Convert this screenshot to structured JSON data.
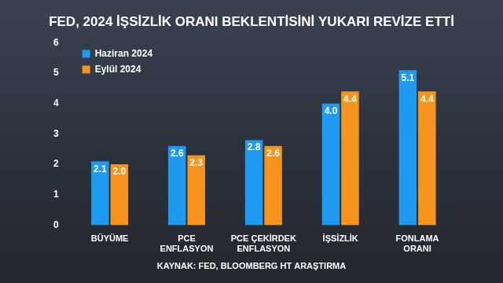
{
  "chart_data": {
    "type": "bar",
    "title": "FED, 2024 İŞSİZLİK ORANI BEKLENTİSİNİ YUKARI REVİZE ETTİ",
    "source": "KAYNAK: FED, BLOOMBERG HT ARAŞTIRMA",
    "categories": [
      "BÜYÜME",
      "PCE\nENFLASYON",
      "PCE ÇEKİRDEK\nENFLASYON",
      "İŞSİZLİK",
      "FONLAMA\nORANI"
    ],
    "series": [
      {
        "name": "Haziran 2024",
        "color": "#1e9bf0",
        "values": [
          2.1,
          2.6,
          2.8,
          4.0,
          5.1
        ],
        "value_labels": [
          "2.1",
          "2.6",
          "2.8",
          "4.0",
          "5.1"
        ]
      },
      {
        "name": "Eylül 2024",
        "color": "#f7941d",
        "values": [
          2.0,
          2.3,
          2.6,
          4.4,
          4.4
        ],
        "value_labels": [
          "2.0",
          "2.3",
          "2.6",
          "4.4",
          "4.4"
        ]
      }
    ],
    "ylim": [
      0,
      6
    ],
    "yticks": [
      0,
      1,
      2,
      3,
      4,
      5,
      6
    ],
    "grid": false,
    "legend": "top-left",
    "data_labels": true
  }
}
